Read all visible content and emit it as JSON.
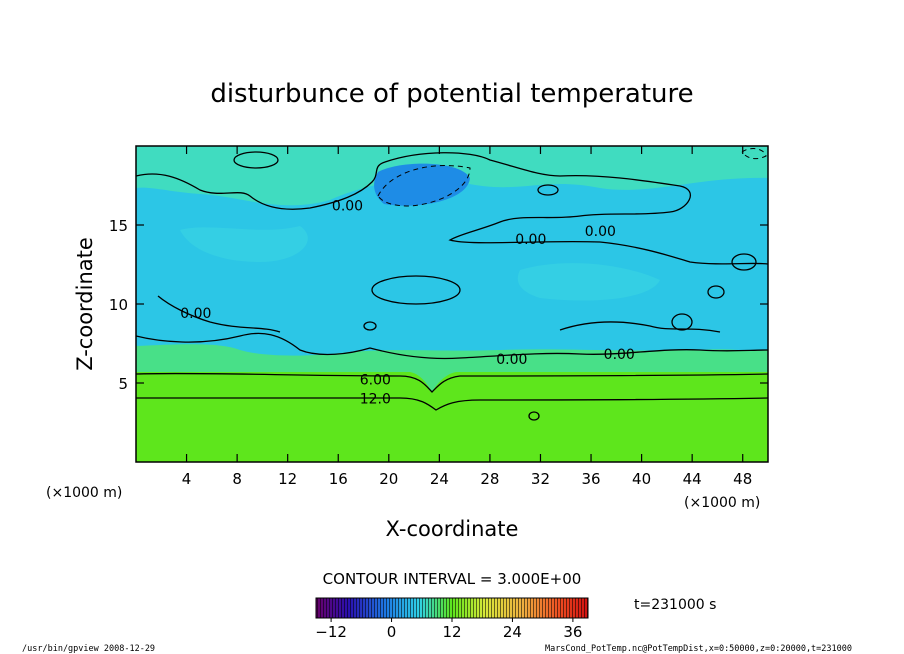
{
  "chart_data": {
    "type": "heatmap",
    "title": "disturbunce of potential temperature",
    "xlabel": "X-coordinate",
    "ylabel": "Z-coordinate",
    "x_unit_left": "(×1000 m)",
    "x_unit_right": "(×1000 m)",
    "xlim": [
      0,
      50
    ],
    "ylim": [
      0,
      20
    ],
    "x_ticks": [
      4,
      8,
      12,
      16,
      20,
      24,
      28,
      32,
      36,
      40,
      44,
      48
    ],
    "y_ticks": [
      5,
      10,
      15
    ],
    "contour_interval_label": "CONTOUR INTERVAL = 3.000E+00",
    "contour_labels": [
      {
        "text": "0.00",
        "x": 15.5,
        "z": 16.1
      },
      {
        "text": "0.00",
        "x": 30.0,
        "z": 14.0
      },
      {
        "text": "0.00",
        "x": 35.5,
        "z": 14.5
      },
      {
        "text": "0.00",
        "x": 3.5,
        "z": 9.3
      },
      {
        "text": "0.00",
        "x": 28.5,
        "z": 6.4
      },
      {
        "text": "0.00",
        "x": 37.0,
        "z": 6.7
      },
      {
        "text": "6.00",
        "x": 17.7,
        "z": 5.1
      },
      {
        "text": "12.0",
        "x": 17.7,
        "z": 3.9
      }
    ],
    "colorbar": {
      "ticks": [
        -12,
        0,
        12,
        24,
        36
      ],
      "range": [
        -15,
        39
      ]
    },
    "time_label": "t=231000 s",
    "footer_left": "/usr/bin/gpview  2008-12-29",
    "footer_right": "MarsCond_PotTemp.nc@PotTempDist,x=0:50000,z=0:20000,t=231000",
    "colors": {
      "lower_green": "#5ee61c",
      "mid_green": "#48e088",
      "upper_cyan": "#2cc6e6",
      "light_cyan": "#40dcdc",
      "deep_blue": "#1e8ce6"
    }
  }
}
